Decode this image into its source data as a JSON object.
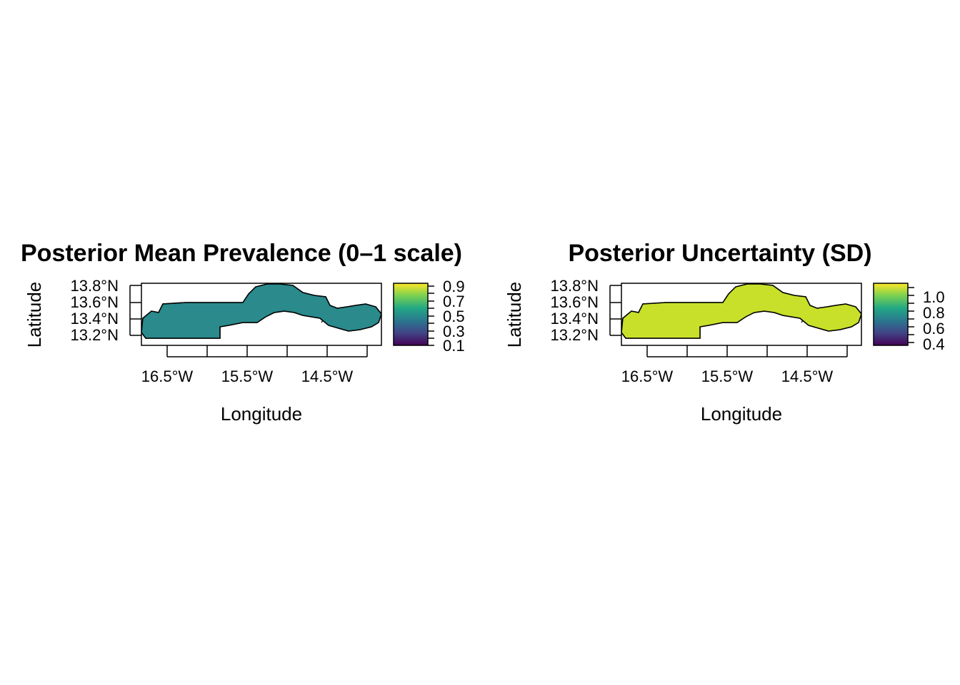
{
  "panels": [
    {
      "title": "Posterior Mean Prevalence (0–1 scale)",
      "xlabel": "Longitude",
      "ylabel": "Latitude",
      "x_ticks": [
        "16.5°W",
        "15.5°W",
        "14.5°W"
      ],
      "y_ticks": [
        "13.8°N",
        "13.6°N",
        "13.4°N",
        "13.2°N"
      ],
      "legend_ticks": [
        "0.9",
        "0.7",
        "0.5",
        "0.3",
        "0.1"
      ],
      "legend_range": [
        0.1,
        0.9
      ],
      "palette": "viridis",
      "base_fill": "#2a8a8c"
    },
    {
      "title": "Posterior Uncertainty (SD)",
      "xlabel": "Longitude",
      "ylabel": "Latitude",
      "x_ticks": [
        "16.5°W",
        "15.5°W",
        "14.5°W"
      ],
      "y_ticks": [
        "13.8°N",
        "13.6°N",
        "13.4°N",
        "13.2°N"
      ],
      "legend_ticks": [
        "1.0",
        "0.8",
        "0.6",
        "0.4"
      ],
      "legend_range": [
        0.4,
        1.05
      ],
      "palette": "viridis",
      "base_fill": "#c8e02a"
    }
  ],
  "colors": {
    "viridis": [
      "#440154",
      "#414487",
      "#2a788e",
      "#22a884",
      "#7ad151",
      "#fde725"
    ]
  }
}
